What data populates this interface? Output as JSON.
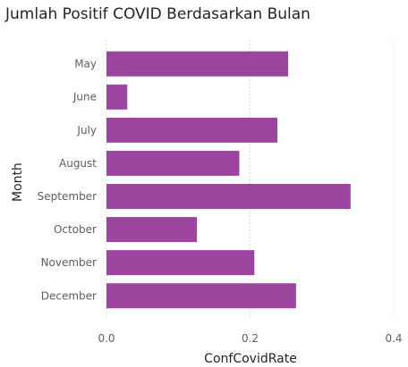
{
  "chart_data": {
    "type": "bar",
    "orientation": "horizontal",
    "title": "Jumlah Positif COVID Berdasarkan Bulan",
    "xlabel": "ConfCovidRate",
    "ylabel": "Month",
    "categories": [
      "May",
      "June",
      "July",
      "August",
      "September",
      "October",
      "November",
      "December"
    ],
    "values": [
      0.253,
      0.029,
      0.238,
      0.185,
      0.34,
      0.126,
      0.206,
      0.264
    ],
    "xlim": [
      0,
      0.4
    ],
    "xticks": [
      "0.0",
      "0.2",
      "0.4"
    ],
    "grid": "vertical-dotted",
    "bar_color": "#9b459f",
    "grid_color": "#c8c6c4",
    "text_color": "#252423",
    "tick_color": "#605e5c"
  }
}
